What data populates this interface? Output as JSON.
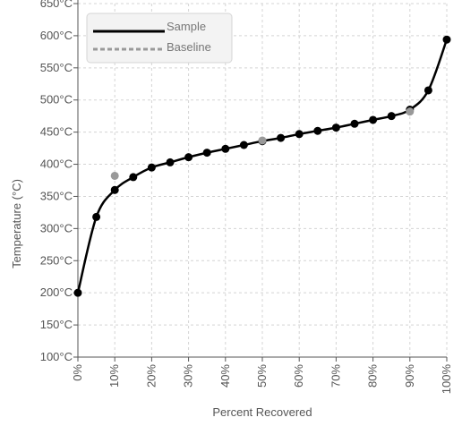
{
  "chart_data": {
    "type": "line",
    "title": "",
    "xlabel": "Percent Recovered",
    "ylabel": "Temperature (°C)",
    "x_tick_labels": [
      "0%",
      "10%",
      "20%",
      "30%",
      "40%",
      "50%",
      "60%",
      "70%",
      "80%",
      "90%",
      "100%"
    ],
    "x_ticks": [
      0,
      10,
      20,
      30,
      40,
      50,
      60,
      70,
      80,
      90,
      100
    ],
    "y_tick_labels": [
      "100°C",
      "150°C",
      "200°C",
      "250°C",
      "300°C",
      "350°C",
      "400°C",
      "450°C",
      "500°C",
      "550°C",
      "600°C",
      "650°C"
    ],
    "y_ticks": [
      100,
      150,
      200,
      250,
      300,
      350,
      400,
      450,
      500,
      550,
      600,
      650
    ],
    "xlim": [
      0,
      100
    ],
    "ylim": [
      100,
      650
    ],
    "grid": true,
    "legend_position": "top-left",
    "series": [
      {
        "name": "Sample",
        "color": "#000000",
        "line_style": "solid",
        "x": [
          0,
          5,
          10,
          15,
          20,
          25,
          30,
          35,
          40,
          45,
          50,
          55,
          60,
          65,
          70,
          75,
          80,
          85,
          90,
          95,
          100
        ],
        "y": [
          200,
          318,
          360,
          380,
          395,
          403,
          411,
          418,
          424,
          430,
          436,
          441,
          447,
          452,
          457,
          463,
          469,
          475,
          485,
          515,
          594
        ]
      },
      {
        "name": "Baseline",
        "color": "#999999",
        "line_style": "dashed",
        "x": [
          10,
          50,
          90
        ],
        "y": [
          382,
          437,
          482
        ]
      }
    ]
  }
}
